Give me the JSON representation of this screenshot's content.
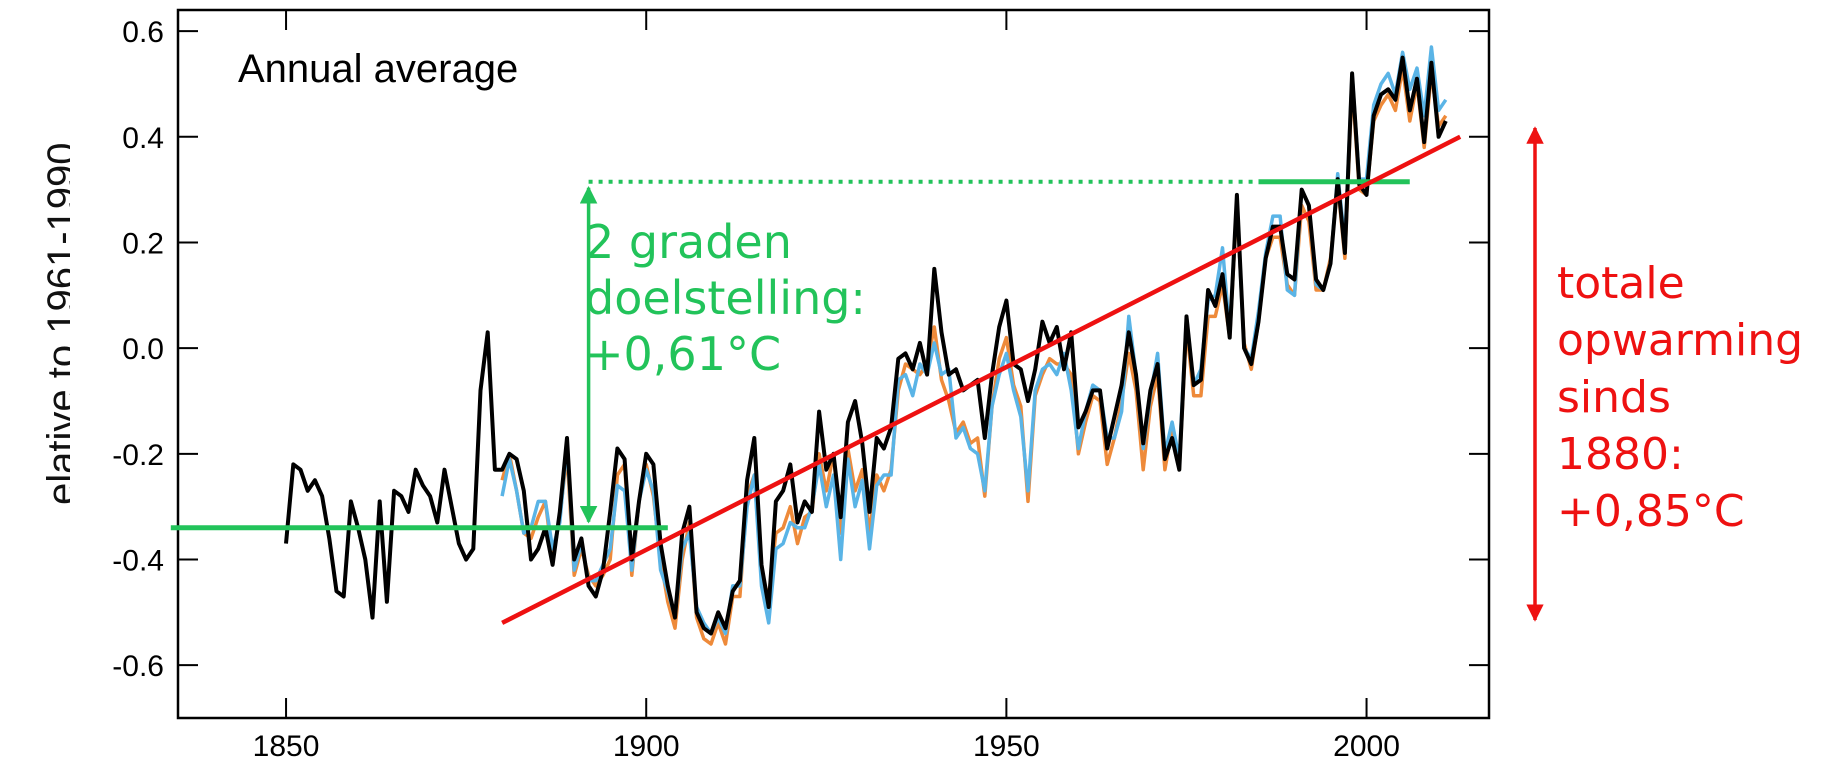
{
  "chart_data": {
    "type": "line",
    "title": "Annual average",
    "ylabel": "elative to 1961-1990",
    "xlim": [
      1835,
      2017
    ],
    "ylim": [
      -0.7,
      0.64
    ],
    "xticks": [
      1850,
      1900,
      1950,
      2000
    ],
    "yticks": [
      0.6,
      0.4,
      0.2,
      0.0,
      -0.2,
      -0.4,
      -0.6
    ],
    "ytick_labels": [
      "0.6",
      "0.4",
      "0.2",
      "0.0",
      "-0.2",
      "-0.4",
      "-0.6"
    ],
    "xtick_labels": [
      "1850",
      "1900",
      "1950",
      "2000"
    ],
    "series": [
      {
        "color": "#000000",
        "x_start": 1850,
        "values": [
          -0.37,
          -0.22,
          -0.23,
          -0.27,
          -0.25,
          -0.28,
          -0.36,
          -0.46,
          -0.47,
          -0.29,
          -0.34,
          -0.4,
          -0.51,
          -0.29,
          -0.48,
          -0.27,
          -0.28,
          -0.31,
          -0.23,
          -0.26,
          -0.28,
          -0.33,
          -0.23,
          -0.3,
          -0.37,
          -0.4,
          -0.38,
          -0.08,
          0.03,
          -0.23,
          -0.23,
          -0.2,
          -0.21,
          -0.27,
          -0.4,
          -0.38,
          -0.34,
          -0.41,
          -0.31,
          -0.17,
          -0.4,
          -0.36,
          -0.45,
          -0.47,
          -0.42,
          -0.31,
          -0.19,
          -0.21,
          -0.4,
          -0.29,
          -0.2,
          -0.22,
          -0.37,
          -0.45,
          -0.51,
          -0.35,
          -0.3,
          -0.5,
          -0.53,
          -0.54,
          -0.5,
          -0.53,
          -0.46,
          -0.44,
          -0.25,
          -0.17,
          -0.41,
          -0.49,
          -0.29,
          -0.27,
          -0.22,
          -0.33,
          -0.29,
          -0.31,
          -0.12,
          -0.23,
          -0.2,
          -0.32,
          -0.14,
          -0.1,
          -0.18,
          -0.31,
          -0.17,
          -0.19,
          -0.15,
          -0.02,
          -0.01,
          -0.04,
          0.01,
          -0.05,
          0.15,
          0.03,
          -0.05,
          -0.04,
          -0.08,
          -0.07,
          -0.06,
          -0.17,
          -0.05,
          0.04,
          0.09,
          -0.03,
          -0.04,
          -0.1,
          -0.04,
          0.05,
          0.01,
          0.04,
          -0.04,
          0.03,
          -0.15,
          -0.12,
          -0.08,
          -0.08,
          -0.19,
          -0.13,
          -0.07,
          0.03,
          -0.05,
          -0.18,
          -0.08,
          -0.03,
          -0.21,
          -0.17,
          -0.23,
          0.06,
          -0.07,
          -0.06,
          0.11,
          0.08,
          0.14,
          0.02,
          0.29,
          -0.0,
          -0.03,
          0.05,
          0.17,
          0.23,
          0.23,
          0.14,
          0.13,
          0.3,
          0.27,
          0.13,
          0.11,
          0.16,
          0.32,
          0.18,
          0.52,
          0.31,
          0.29,
          0.44,
          0.48,
          0.49,
          0.47,
          0.55,
          0.45,
          0.51,
          0.39,
          0.54,
          0.4,
          0.43
        ],
        "note_name": ""
      },
      {
        "color": "#ee8a3a",
        "x_start": 1880,
        "values": [
          -0.25,
          -0.2,
          -0.27,
          -0.35,
          -0.36,
          -0.32,
          -0.29,
          -0.4,
          -0.32,
          -0.2,
          -0.43,
          -0.38,
          -0.43,
          -0.45,
          -0.43,
          -0.4,
          -0.24,
          -0.22,
          -0.43,
          -0.29,
          -0.22,
          -0.28,
          -0.4,
          -0.48,
          -0.53,
          -0.4,
          -0.33,
          -0.51,
          -0.55,
          -0.56,
          -0.52,
          -0.56,
          -0.47,
          -0.47,
          -0.28,
          -0.24,
          -0.43,
          -0.47,
          -0.35,
          -0.34,
          -0.3,
          -0.37,
          -0.32,
          -0.31,
          -0.2,
          -0.27,
          -0.2,
          -0.35,
          -0.19,
          -0.27,
          -0.23,
          -0.35,
          -0.24,
          -0.27,
          -0.23,
          -0.08,
          -0.03,
          -0.04,
          -0.05,
          -0.03,
          0.04,
          -0.06,
          -0.1,
          -0.16,
          -0.14,
          -0.18,
          -0.17,
          -0.28,
          -0.11,
          -0.02,
          0.02,
          -0.07,
          -0.11,
          -0.29,
          -0.09,
          -0.05,
          -0.02,
          -0.03,
          -0.03,
          -0.05,
          -0.2,
          -0.14,
          -0.09,
          -0.1,
          -0.22,
          -0.17,
          -0.1,
          -0.01,
          -0.08,
          -0.23,
          -0.11,
          -0.05,
          -0.23,
          -0.15,
          -0.23,
          0.04,
          -0.09,
          -0.09,
          0.06,
          0.06,
          0.12,
          0.02,
          0.27,
          0.01,
          -0.04,
          0.05,
          0.17,
          0.21,
          0.21,
          0.12,
          0.1,
          0.27,
          0.24,
          0.11,
          0.11,
          0.17,
          0.31,
          0.17,
          0.5,
          0.3,
          0.29,
          0.43,
          0.46,
          0.48,
          0.45,
          0.53,
          0.43,
          0.5,
          0.38,
          0.52,
          0.42,
          0.44
        ]
      },
      {
        "color": "#5ab4e6",
        "x_start": 1880,
        "values": [
          -0.28,
          -0.21,
          -0.27,
          -0.35,
          -0.34,
          -0.29,
          -0.29,
          -0.38,
          -0.33,
          -0.18,
          -0.42,
          -0.37,
          -0.44,
          -0.44,
          -0.41,
          -0.38,
          -0.26,
          -0.27,
          -0.42,
          -0.29,
          -0.23,
          -0.27,
          -0.42,
          -0.46,
          -0.51,
          -0.38,
          -0.35,
          -0.49,
          -0.52,
          -0.54,
          -0.51,
          -0.54,
          -0.45,
          -0.45,
          -0.3,
          -0.24,
          -0.45,
          -0.52,
          -0.38,
          -0.37,
          -0.33,
          -0.34,
          -0.34,
          -0.3,
          -0.22,
          -0.3,
          -0.24,
          -0.4,
          -0.21,
          -0.3,
          -0.25,
          -0.38,
          -0.26,
          -0.24,
          -0.24,
          -0.06,
          -0.05,
          -0.09,
          -0.03,
          -0.05,
          0.01,
          -0.05,
          -0.04,
          -0.17,
          -0.15,
          -0.19,
          -0.2,
          -0.27,
          -0.11,
          -0.05,
          -0.01,
          -0.08,
          -0.13,
          -0.27,
          -0.08,
          -0.04,
          -0.03,
          -0.05,
          -0.01,
          -0.08,
          -0.19,
          -0.12,
          -0.07,
          -0.08,
          -0.17,
          -0.17,
          -0.12,
          0.06,
          -0.05,
          -0.19,
          -0.09,
          -0.01,
          -0.2,
          -0.14,
          -0.21,
          0.06,
          -0.07,
          -0.04,
          0.09,
          0.1,
          0.19,
          0.03,
          0.28,
          0.0,
          -0.02,
          0.07,
          0.18,
          0.25,
          0.25,
          0.11,
          0.1,
          0.3,
          0.27,
          0.12,
          0.11,
          0.16,
          0.33,
          0.2,
          0.52,
          0.32,
          0.32,
          0.46,
          0.5,
          0.52,
          0.48,
          0.56,
          0.49,
          0.53,
          0.44,
          0.57,
          0.45,
          0.47
        ]
      }
    ],
    "annotations": {
      "baseline": {
        "x1": 1834,
        "x2": 1903,
        "y": -0.34,
        "color": "#22c35a"
      },
      "target": {
        "x1": 1985,
        "x2": 2006,
        "y": 0.315,
        "color": "#22c35a"
      },
      "dotted": {
        "x1": 1892,
        "x2": 1985,
        "y": 0.315,
        "color": "#22c35a"
      },
      "green_arrow": {
        "x": 1892,
        "y1": -0.34,
        "y2": 0.315
      },
      "trend": {
        "x1": 1880,
        "y1": -0.52,
        "x2": 2013,
        "y2": 0.4,
        "color": "#ee1111"
      },
      "green_label": [
        "2 graden",
        "doelstelling:",
        "+0,61°C"
      ],
      "red_label": [
        "totale",
        "opwarming",
        "sinds",
        "1880:",
        "+0,85°C"
      ]
    }
  }
}
